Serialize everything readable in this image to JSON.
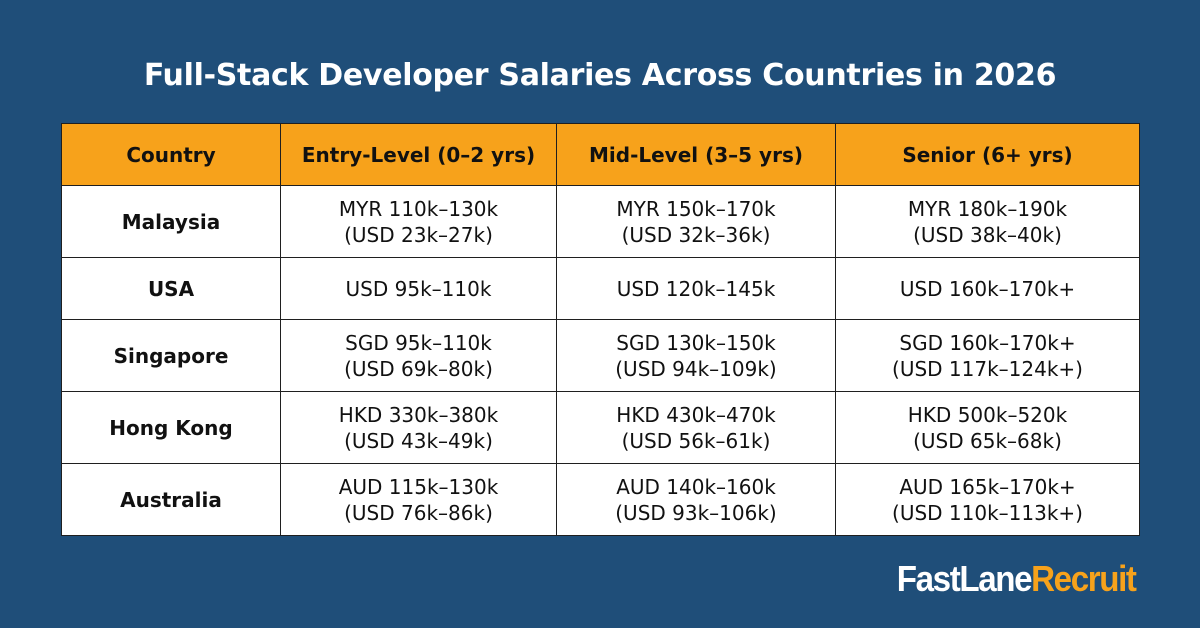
{
  "title": "Full-Stack Developer Salaries Across Countries in 2026",
  "table": {
    "headers": [
      "Country",
      "Entry-Level (0–2 yrs)",
      "Mid-Level (3–5 yrs)",
      "Senior (6+ yrs)"
    ],
    "rows": [
      {
        "country": "Malaysia",
        "entry": [
          "MYR 110k–130k",
          "(USD 23k–27k)"
        ],
        "mid": [
          "MYR 150k–170k",
          "(USD 32k–36k)"
        ],
        "senior": [
          "MYR 180k–190k",
          "(USD 38k–40k)"
        ]
      },
      {
        "country": "USA",
        "entry": [
          "USD 95k–110k"
        ],
        "mid": [
          "USD 120k–145k"
        ],
        "senior": [
          "USD 160k–170k+"
        ]
      },
      {
        "country": "Singapore",
        "entry": [
          "SGD 95k–110k",
          "(USD 69k–80k)"
        ],
        "mid": [
          "SGD 130k–150k",
          "(USD 94k–109k)"
        ],
        "senior": [
          "SGD 160k–170k+",
          "(USD 117k–124k+)"
        ]
      },
      {
        "country": "Hong Kong",
        "entry": [
          "HKD 330k–380k",
          "(USD 43k–49k)"
        ],
        "mid": [
          "HKD 430k–470k",
          "(USD 56k–61k)"
        ],
        "senior": [
          "HKD 500k–520k",
          "(USD 65k–68k)"
        ]
      },
      {
        "country": "Australia",
        "entry": [
          "AUD 115k–130k",
          "(USD 76k–86k)"
        ],
        "mid": [
          "AUD 140k–160k",
          "(USD 93k–106k)"
        ],
        "senior": [
          "AUD 165k–170k+",
          "(USD 110k–113k+)"
        ]
      }
    ]
  },
  "logo": {
    "part1": "FastLane",
    "part2": "Recruit"
  },
  "colors": {
    "background": "#1f4e79",
    "header": "#f7a21b",
    "accent": "#f7a21b"
  }
}
